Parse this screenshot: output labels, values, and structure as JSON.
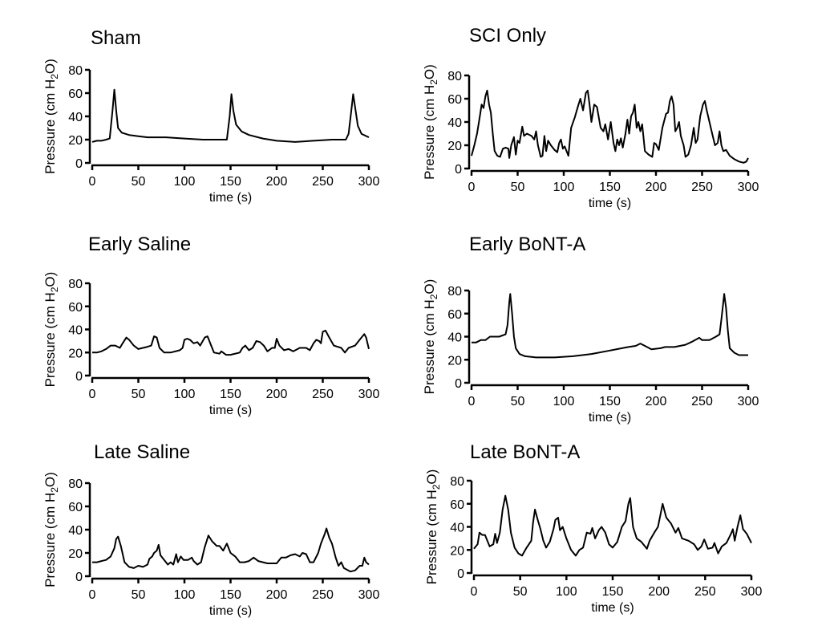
{
  "chart_data": [
    {
      "type": "line",
      "title": "Sham",
      "xlabel": "time (s)",
      "ylabel_parts": [
        "Pressure (cm H",
        "2",
        "O)"
      ],
      "xlim": [
        0,
        300
      ],
      "ylim": [
        0,
        80
      ],
      "xticks": [
        0,
        50,
        100,
        150,
        200,
        250,
        300
      ],
      "yticks": [
        0,
        20,
        40,
        60,
        80
      ],
      "grid": false,
      "color": "#000000",
      "series": [
        {
          "x": [
            0,
            5,
            10,
            15,
            19,
            22,
            24,
            26,
            28,
            32,
            40,
            50,
            60,
            80,
            100,
            120,
            140,
            146,
            149,
            151,
            153,
            156,
            162,
            170,
            185,
            200,
            220,
            240,
            260,
            275,
            278,
            281,
            283,
            285,
            288,
            292,
            300
          ],
          "y": [
            18,
            19,
            19,
            20,
            21,
            45,
            63,
            45,
            30,
            26,
            24,
            23,
            22,
            22,
            21,
            20,
            20,
            20,
            40,
            59,
            45,
            33,
            27,
            24,
            21,
            19,
            18,
            19,
            20,
            20,
            25,
            45,
            59,
            48,
            32,
            25,
            22
          ]
        }
      ]
    },
    {
      "type": "line",
      "title": "SCI Only",
      "xlabel": "time (s)",
      "ylabel_parts": [
        "Pressure (cm H",
        "2",
        "O)"
      ],
      "xlim": [
        0,
        300
      ],
      "ylim": [
        0,
        80
      ],
      "xticks": [
        0,
        50,
        100,
        150,
        200,
        250,
        300
      ],
      "yticks": [
        0,
        20,
        40,
        60,
        80
      ],
      "grid": false,
      "color": "#000000",
      "series": [
        {
          "x": [
            0,
            3,
            6,
            9,
            11,
            13,
            15,
            17,
            19,
            21,
            23,
            25,
            28,
            31,
            34,
            37,
            40,
            41,
            43,
            46,
            48,
            50,
            52,
            55,
            57,
            60,
            65,
            68,
            70,
            72,
            75,
            77,
            79,
            81,
            83,
            86,
            90,
            93,
            95,
            97,
            99,
            101,
            105,
            108,
            112,
            116,
            118,
            121,
            124,
            126,
            128,
            130,
            133,
            136,
            140,
            143,
            145,
            148,
            151,
            154,
            156,
            158,
            160,
            162,
            164,
            167,
            169,
            171,
            173,
            175,
            177,
            179,
            181,
            183,
            185,
            188,
            192,
            196,
            198,
            200,
            203,
            207,
            211,
            213,
            215,
            217,
            219,
            221,
            223,
            225,
            227,
            230,
            232,
            235,
            238,
            241,
            243,
            245,
            248,
            251,
            253,
            255,
            258,
            261,
            264,
            267,
            269,
            271,
            273,
            276,
            280,
            285,
            290,
            295,
            298,
            300
          ],
          "y": [
            11,
            20,
            30,
            45,
            55,
            52,
            62,
            67,
            55,
            48,
            30,
            15,
            11,
            10,
            17,
            18,
            17,
            9,
            20,
            27,
            12,
            24,
            22,
            36,
            28,
            30,
            28,
            25,
            32,
            20,
            10,
            11,
            28,
            15,
            24,
            20,
            16,
            14,
            22,
            25,
            17,
            19,
            11,
            35,
            44,
            55,
            60,
            50,
            65,
            67,
            55,
            40,
            55,
            53,
            35,
            32,
            38,
            25,
            40,
            22,
            15,
            25,
            20,
            26,
            18,
            30,
            42,
            30,
            45,
            48,
            55,
            35,
            40,
            32,
            38,
            15,
            12,
            10,
            22,
            21,
            16,
            35,
            47,
            48,
            58,
            62,
            55,
            32,
            35,
            40,
            28,
            20,
            10,
            12,
            20,
            35,
            22,
            25,
            45,
            55,
            58,
            50,
            40,
            30,
            20,
            22,
            32,
            20,
            15,
            16,
            11,
            8,
            6,
            5,
            6,
            9
          ]
        }
      ]
    },
    {
      "type": "line",
      "title": "Early Saline",
      "xlabel": "time (s)",
      "ylabel_parts": [
        "Pressure (cm H",
        "2",
        "O)"
      ],
      "xlim": [
        0,
        300
      ],
      "ylim": [
        0,
        80
      ],
      "xticks": [
        0,
        50,
        100,
        150,
        200,
        250,
        300
      ],
      "yticks": [
        0,
        20,
        40,
        60,
        80
      ],
      "grid": false,
      "color": "#000000",
      "series": [
        {
          "x": [
            0,
            5,
            10,
            15,
            20,
            25,
            30,
            33,
            37,
            40,
            45,
            50,
            55,
            60,
            64,
            67,
            70,
            73,
            78,
            85,
            95,
            98,
            100,
            103,
            106,
            110,
            114,
            117,
            122,
            125,
            128,
            132,
            138,
            140,
            145,
            150,
            160,
            163,
            166,
            170,
            174,
            178,
            182,
            186,
            190,
            195,
            198,
            200,
            203,
            208,
            213,
            218,
            225,
            232,
            236,
            240,
            243,
            246,
            248,
            250,
            253,
            257,
            262,
            266,
            270,
            274,
            278,
            285,
            290,
            295,
            297,
            300
          ],
          "y": [
            20,
            20,
            21,
            23,
            26,
            26,
            24,
            28,
            33,
            31,
            26,
            23,
            24,
            25,
            26,
            34,
            33,
            24,
            20,
            20,
            22,
            24,
            31,
            32,
            31,
            28,
            29,
            26,
            33,
            34,
            28,
            20,
            19,
            21,
            18,
            18,
            20,
            24,
            26,
            22,
            24,
            30,
            29,
            26,
            21,
            24,
            24,
            32,
            26,
            22,
            23,
            21,
            24,
            24,
            22,
            28,
            31,
            30,
            28,
            38,
            39,
            33,
            26,
            25,
            24,
            20,
            24,
            26,
            31,
            36,
            33,
            23
          ]
        }
      ]
    },
    {
      "type": "line",
      "title": "Early BoNT-A",
      "xlabel": "time (s)",
      "ylabel_parts": [
        "Pressure (cm H",
        "2",
        "O)"
      ],
      "xlim": [
        0,
        300
      ],
      "ylim": [
        0,
        80
      ],
      "xticks": [
        0,
        50,
        100,
        150,
        200,
        250,
        300
      ],
      "yticks": [
        0,
        20,
        40,
        60,
        80
      ],
      "grid": false,
      "color": "#000000",
      "series": [
        {
          "x": [
            0,
            5,
            10,
            15,
            20,
            25,
            30,
            37,
            39,
            41,
            42,
            44,
            46,
            48,
            52,
            58,
            70,
            90,
            110,
            130,
            150,
            170,
            178,
            183,
            188,
            195,
            205,
            210,
            220,
            232,
            240,
            247,
            250,
            258,
            265,
            269,
            271,
            273,
            274,
            276,
            278,
            280,
            285,
            290,
            300
          ],
          "y": [
            35,
            35,
            37,
            37,
            40,
            40,
            40,
            42,
            50,
            70,
            77,
            60,
            40,
            30,
            25,
            23,
            22,
            22,
            23,
            25,
            28,
            31,
            32,
            34,
            32,
            29,
            30,
            31,
            31,
            33,
            36,
            39,
            37,
            37,
            40,
            42,
            55,
            70,
            77,
            65,
            45,
            30,
            26,
            24,
            24
          ]
        }
      ]
    },
    {
      "type": "line",
      "title": "Late Saline",
      "xlabel": "time (s)",
      "ylabel_parts": [
        "Pressure (cm H",
        "2",
        "O)"
      ],
      "xlim": [
        0,
        300
      ],
      "ylim": [
        0,
        80
      ],
      "xticks": [
        0,
        50,
        100,
        150,
        200,
        250,
        300
      ],
      "yticks": [
        0,
        20,
        40,
        60,
        80
      ],
      "grid": false,
      "color": "#000000",
      "series": [
        {
          "x": [
            0,
            5,
            10,
            15,
            20,
            24,
            26,
            28,
            31,
            35,
            40,
            45,
            50,
            55,
            60,
            62,
            65,
            67,
            70,
            72,
            74,
            78,
            82,
            85,
            88,
            91,
            93,
            96,
            99,
            104,
            108,
            110,
            114,
            118,
            122,
            126,
            130,
            135,
            138,
            142,
            146,
            150,
            155,
            160,
            165,
            170,
            175,
            180,
            185,
            190,
            200,
            205,
            210,
            215,
            220,
            225,
            228,
            232,
            236,
            240,
            245,
            248,
            252,
            254,
            257,
            260,
            264,
            267,
            270,
            273,
            280,
            285,
            290,
            293,
            295,
            297,
            300
          ],
          "y": [
            12,
            12,
            13,
            14,
            17,
            24,
            32,
            34,
            26,
            12,
            8,
            7,
            9,
            8,
            10,
            15,
            17,
            20,
            22,
            27,
            18,
            14,
            10,
            12,
            10,
            19,
            12,
            17,
            14,
            14,
            16,
            13,
            10,
            12,
            25,
            35,
            30,
            26,
            26,
            22,
            28,
            20,
            17,
            12,
            12,
            13,
            16,
            13,
            12,
            11,
            11,
            16,
            16,
            18,
            19,
            17,
            20,
            19,
            12,
            12,
            20,
            28,
            36,
            41,
            33,
            28,
            16,
            9,
            12,
            7,
            4,
            5,
            9,
            9,
            16,
            12,
            10
          ]
        }
      ]
    },
    {
      "type": "line",
      "title": "Late BoNT-A",
      "xlabel": "time (s)",
      "ylabel_parts": [
        "Pressure (cm H",
        "2",
        "O)"
      ],
      "xlim": [
        0,
        300
      ],
      "ylim": [
        0,
        80
      ],
      "xticks": [
        0,
        50,
        100,
        150,
        200,
        250,
        300
      ],
      "yticks": [
        0,
        20,
        40,
        60,
        80
      ],
      "grid": false,
      "color": "#000000",
      "series": [
        {
          "x": [
            0,
            4,
            6,
            9,
            12,
            17,
            21,
            23,
            25,
            28,
            31,
            34,
            37,
            40,
            44,
            48,
            52,
            57,
            62,
            64,
            66,
            69,
            72,
            75,
            78,
            82,
            86,
            88,
            91,
            93,
            96,
            100,
            105,
            110,
            114,
            118,
            122,
            126,
            128,
            131,
            135,
            138,
            142,
            146,
            150,
            155,
            160,
            164,
            167,
            169,
            172,
            176,
            181,
            187,
            190,
            195,
            199,
            202,
            204,
            208,
            213,
            218,
            221,
            225,
            232,
            238,
            242,
            246,
            249,
            253,
            258,
            260,
            264,
            268,
            273,
            278,
            280,
            282,
            285,
            288,
            291,
            295,
            300
          ],
          "y": [
            21,
            25,
            35,
            33,
            33,
            23,
            25,
            34,
            26,
            35,
            55,
            67,
            55,
            35,
            22,
            17,
            15,
            22,
            28,
            44,
            55,
            46,
            38,
            28,
            22,
            27,
            38,
            46,
            48,
            37,
            40,
            30,
            20,
            15,
            20,
            22,
            35,
            34,
            39,
            30,
            37,
            40,
            35,
            25,
            22,
            27,
            40,
            45,
            60,
            65,
            40,
            30,
            27,
            21,
            28,
            35,
            40,
            52,
            60,
            48,
            43,
            35,
            39,
            30,
            28,
            25,
            20,
            23,
            29,
            21,
            22,
            26,
            17,
            23,
            26,
            34,
            38,
            28,
            40,
            50,
            38,
            34,
            26
          ]
        }
      ]
    }
  ]
}
